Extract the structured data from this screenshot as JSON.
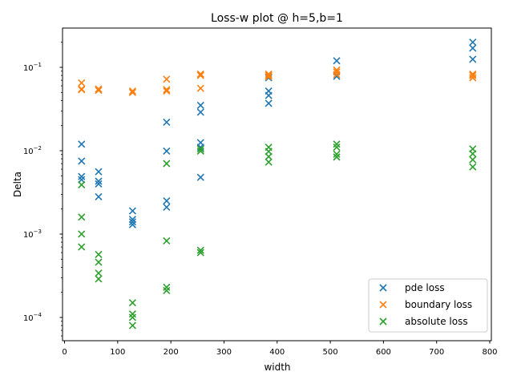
{
  "chart_data": {
    "type": "scatter",
    "title": "Loss-w plot @ h=5,b=1",
    "xlabel": "width",
    "ylabel": "Delta",
    "xlim": [
      -3.8,
      803
    ],
    "ylim": [
      5.26e-05,
      0.296
    ],
    "yscale": "log",
    "grid": false,
    "legend_position": "lower right",
    "x_ticks": [
      "0",
      "100",
      "200",
      "300",
      "400",
      "500",
      "600",
      "700",
      "800"
    ],
    "y_ticks": [
      {
        "value": 0.0001,
        "base": "10",
        "exp": "−4"
      },
      {
        "value": 0.001,
        "base": "10",
        "exp": "−3"
      },
      {
        "value": 0.01,
        "base": "10",
        "exp": "−2"
      },
      {
        "value": 0.1,
        "base": "10",
        "exp": "−1"
      }
    ],
    "marker": "x",
    "series": [
      {
        "name": "pde loss",
        "color": "#1f77b4",
        "points": [
          [
            32,
            0.012
          ],
          [
            32,
            0.0075
          ],
          [
            32,
            0.0049
          ],
          [
            32,
            0.0045
          ],
          [
            64,
            0.0056
          ],
          [
            64,
            0.0043
          ],
          [
            64,
            0.004
          ],
          [
            64,
            0.0028
          ],
          [
            128,
            0.0019
          ],
          [
            128,
            0.0015
          ],
          [
            128,
            0.0014
          ],
          [
            128,
            0.0013
          ],
          [
            192,
            0.022
          ],
          [
            192,
            0.0099
          ],
          [
            192,
            0.0025
          ],
          [
            192,
            0.0021
          ],
          [
            256,
            0.035
          ],
          [
            256,
            0.029
          ],
          [
            256,
            0.0125
          ],
          [
            256,
            0.011
          ],
          [
            256,
            0.0048
          ],
          [
            384,
            0.075
          ],
          [
            384,
            0.052
          ],
          [
            384,
            0.046
          ],
          [
            384,
            0.037
          ],
          [
            512,
            0.12
          ],
          [
            512,
            0.078
          ],
          [
            768,
            0.2
          ],
          [
            768,
            0.17
          ],
          [
            768,
            0.125
          ]
        ]
      },
      {
        "name": "boundary loss",
        "color": "#ff7f0e",
        "points": [
          [
            32,
            0.065
          ],
          [
            32,
            0.055
          ],
          [
            32,
            0.054
          ],
          [
            64,
            0.055
          ],
          [
            64,
            0.053
          ],
          [
            128,
            0.052
          ],
          [
            128,
            0.05
          ],
          [
            192,
            0.072
          ],
          [
            192,
            0.054
          ],
          [
            192,
            0.052
          ],
          [
            256,
            0.083
          ],
          [
            256,
            0.08
          ],
          [
            256,
            0.056
          ],
          [
            384,
            0.083
          ],
          [
            384,
            0.08
          ],
          [
            384,
            0.077
          ],
          [
            512,
            0.093
          ],
          [
            512,
            0.088
          ],
          [
            512,
            0.082
          ],
          [
            768,
            0.083
          ],
          [
            768,
            0.08
          ],
          [
            768,
            0.075
          ]
        ]
      },
      {
        "name": "absolute loss",
        "color": "#2ca02c",
        "points": [
          [
            32,
            0.0039
          ],
          [
            32,
            0.0016
          ],
          [
            32,
            0.001
          ],
          [
            32,
            0.0007
          ],
          [
            64,
            0.00057
          ],
          [
            64,
            0.00046
          ],
          [
            64,
            0.00034
          ],
          [
            64,
            0.00029
          ],
          [
            128,
            0.00015
          ],
          [
            128,
            0.00011
          ],
          [
            128,
            0.0001
          ],
          [
            128,
            8e-05
          ],
          [
            192,
            0.007
          ],
          [
            192,
            0.00083
          ],
          [
            192,
            0.00023
          ],
          [
            192,
            0.00021
          ],
          [
            256,
            0.0105
          ],
          [
            256,
            0.0099
          ],
          [
            256,
            0.00064
          ],
          [
            256,
            0.0006
          ],
          [
            384,
            0.011
          ],
          [
            384,
            0.0098
          ],
          [
            384,
            0.0085
          ],
          [
            384,
            0.0073
          ],
          [
            512,
            0.012
          ],
          [
            512,
            0.011
          ],
          [
            512,
            0.0091
          ],
          [
            512,
            0.0084
          ],
          [
            768,
            0.0105
          ],
          [
            768,
            0.0092
          ],
          [
            768,
            0.0078
          ],
          [
            768,
            0.0064
          ]
        ]
      }
    ]
  }
}
